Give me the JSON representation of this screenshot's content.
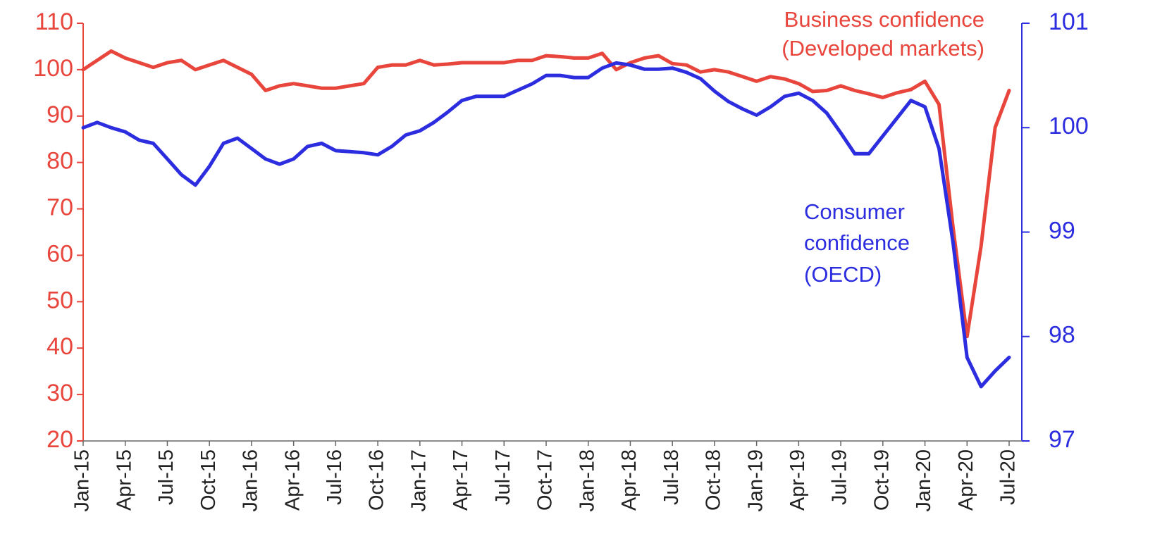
{
  "chart_data": {
    "type": "line",
    "title": "",
    "xlabel": "",
    "x_tick_labels": [
      "Jan-15",
      "Apr-15",
      "Jul-15",
      "Oct-15",
      "Jan-16",
      "Apr-16",
      "Jul-16",
      "Oct-16",
      "Jan-17",
      "Apr-17",
      "Jul-17",
      "Oct-17",
      "Jan-18",
      "Apr-18",
      "Jul-18",
      "Oct-18",
      "Jan-19",
      "Apr-19",
      "Jul-19",
      "Oct-19",
      "Jan-20",
      "Apr-20",
      "Jul-20"
    ],
    "x": [
      "2015-01",
      "2015-02",
      "2015-03",
      "2015-04",
      "2015-05",
      "2015-06",
      "2015-07",
      "2015-08",
      "2015-09",
      "2015-10",
      "2015-11",
      "2015-12",
      "2016-01",
      "2016-02",
      "2016-03",
      "2016-04",
      "2016-05",
      "2016-06",
      "2016-07",
      "2016-08",
      "2016-09",
      "2016-10",
      "2016-11",
      "2016-12",
      "2017-01",
      "2017-02",
      "2017-03",
      "2017-04",
      "2017-05",
      "2017-06",
      "2017-07",
      "2017-08",
      "2017-09",
      "2017-10",
      "2017-11",
      "2017-12",
      "2018-01",
      "2018-02",
      "2018-03",
      "2018-04",
      "2018-05",
      "2018-06",
      "2018-07",
      "2018-08",
      "2018-09",
      "2018-10",
      "2018-11",
      "2018-12",
      "2019-01",
      "2019-02",
      "2019-03",
      "2019-04",
      "2019-05",
      "2019-06",
      "2019-07",
      "2019-08",
      "2019-09",
      "2019-10",
      "2019-11",
      "2019-12",
      "2020-01",
      "2020-02",
      "2020-03",
      "2020-04",
      "2020-05",
      "2020-06",
      "2020-07"
    ],
    "y_left": {
      "ylim": [
        20,
        110
      ],
      "ticks": [
        "20",
        "30",
        "40",
        "50",
        "60",
        "70",
        "80",
        "90",
        "100",
        "110"
      ],
      "color": "#e8453c"
    },
    "y_right": {
      "ylim": [
        97,
        101
      ],
      "ticks": [
        "97",
        "98",
        "99",
        "100",
        "101"
      ],
      "color": "#2d2de0"
    },
    "series": [
      {
        "name": "Business confidence\n(Developed markets)",
        "label_lines": [
          "Business confidence",
          "(Developed markets)"
        ],
        "axis": "left",
        "color": "#e8453c",
        "values": [
          100,
          102,
          104,
          102.5,
          101.5,
          100.5,
          101.5,
          102,
          100,
          101,
          102,
          100.5,
          99,
          95.5,
          96.5,
          97,
          96.5,
          96,
          96,
          96.5,
          97,
          100.5,
          101,
          101,
          102,
          101,
          101.2,
          101.5,
          101.5,
          101.5,
          101.5,
          102,
          102,
          103,
          102.8,
          102.5,
          102.5,
          103.5,
          100,
          101.5,
          102.5,
          103,
          101.3,
          101,
          99.5,
          100,
          99.5,
          98.5,
          97.5,
          98.5,
          98,
          97,
          95.3,
          95.5,
          96.5,
          95.5,
          94.8,
          94,
          95,
          95.7,
          97.5,
          92.5,
          66,
          42.5,
          62,
          87.5,
          95.5
        ]
      },
      {
        "name": "Consumer\nconfidence\n(OECD)",
        "label_lines": [
          "Consumer",
          "confidence",
          "(OECD)"
        ],
        "axis": "right",
        "color": "#2d2de0",
        "values": [
          100,
          100.05,
          100,
          99.96,
          99.88,
          99.85,
          99.7,
          99.55,
          99.45,
          99.63,
          99.85,
          99.9,
          99.8,
          99.7,
          99.65,
          99.7,
          99.82,
          99.85,
          99.78,
          99.77,
          99.76,
          99.74,
          99.82,
          99.93,
          99.97,
          100.05,
          100.15,
          100.26,
          100.3,
          100.3,
          100.3,
          100.36,
          100.42,
          100.5,
          100.5,
          100.48,
          100.48,
          100.57,
          100.62,
          100.6,
          100.56,
          100.56,
          100.57,
          100.53,
          100.47,
          100.35,
          100.25,
          100.18,
          100.12,
          100.2,
          100.3,
          100.33,
          100.26,
          100.14,
          99.95,
          99.75,
          99.75,
          99.92,
          100.09,
          100.26,
          100.2,
          99.8,
          98.9,
          97.8,
          97.52,
          97.67,
          97.8
        ]
      }
    ],
    "grid": false,
    "legend": "none"
  }
}
